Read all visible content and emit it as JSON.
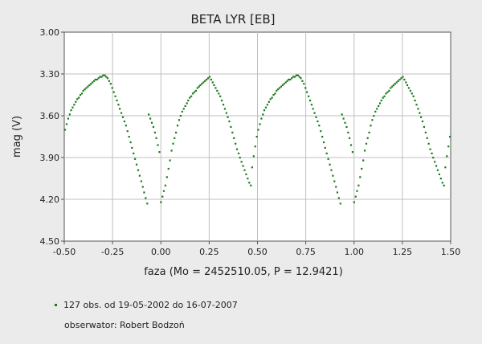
{
  "chart_data": {
    "type": "scatter",
    "title": "BETA LYR [EB]",
    "xlabel": "faza (Mo = 2452510.05, P = 12.9421)",
    "ylabel": "mag (V)",
    "xlim": [
      -0.5,
      1.5
    ],
    "ylim": [
      3.0,
      4.5
    ],
    "y_inverted": true,
    "grid": true,
    "x_ticks": [
      "-0.50",
      "-0.25",
      "0.00",
      "0.25",
      "0.50",
      "0.75",
      "1.00",
      "1.25",
      "1.50"
    ],
    "y_ticks": [
      "3.00",
      "3.30",
      "3.60",
      "3.90",
      "4.20",
      "4.50"
    ],
    "point_color": "#1a7a1a",
    "x": [
      0.0,
      0.008,
      0.015,
      0.023,
      0.031,
      0.039,
      0.047,
      0.055,
      0.063,
      0.07,
      0.078,
      0.086,
      0.094,
      0.102,
      0.11,
      0.118,
      0.126,
      0.134,
      0.141,
      0.149,
      0.157,
      0.165,
      0.173,
      0.181,
      0.189,
      0.197,
      0.204,
      0.212,
      0.22,
      0.228,
      0.236,
      0.244,
      0.252,
      0.26,
      0.268,
      0.275,
      0.283,
      0.291,
      0.299,
      0.307,
      0.315,
      0.323,
      0.331,
      0.339,
      0.346,
      0.354,
      0.362,
      0.37,
      0.378,
      0.386,
      0.394,
      0.402,
      0.409,
      0.417,
      0.425,
      0.433,
      0.441,
      0.449,
      0.457,
      0.465,
      0.472,
      0.48,
      0.488,
      0.496,
      0.504,
      0.512,
      0.52,
      0.528,
      0.535,
      0.543,
      0.551,
      0.559,
      0.567,
      0.575,
      0.583,
      0.591,
      0.598,
      0.606,
      0.614,
      0.622,
      0.63,
      0.638,
      0.646,
      0.654,
      0.661,
      0.669,
      0.677,
      0.685,
      0.693,
      0.701,
      0.709,
      0.717,
      0.724,
      0.732,
      0.74,
      0.748,
      0.756,
      0.764,
      0.772,
      0.78,
      0.787,
      0.795,
      0.803,
      0.811,
      0.819,
      0.827,
      0.835,
      0.843,
      0.85,
      0.858,
      0.866,
      0.874,
      0.882,
      0.89,
      0.898,
      0.906,
      0.913,
      0.921,
      0.929,
      0.937,
      0.945,
      0.953,
      0.961,
      0.969,
      0.976,
      0.984,
      0.992
    ],
    "y": [
      4.22,
      4.18,
      4.14,
      4.1,
      4.04,
      3.98,
      3.92,
      3.85,
      3.8,
      3.76,
      3.72,
      3.67,
      3.63,
      3.6,
      3.57,
      3.55,
      3.53,
      3.51,
      3.49,
      3.47,
      3.46,
      3.44,
      3.43,
      3.42,
      3.4,
      3.39,
      3.38,
      3.37,
      3.36,
      3.35,
      3.34,
      3.33,
      3.32,
      3.34,
      3.36,
      3.38,
      3.4,
      3.42,
      3.44,
      3.46,
      3.49,
      3.52,
      3.55,
      3.58,
      3.61,
      3.64,
      3.68,
      3.72,
      3.76,
      3.8,
      3.84,
      3.87,
      3.9,
      3.93,
      3.96,
      3.99,
      4.02,
      4.05,
      4.08,
      4.1,
      3.97,
      3.89,
      3.82,
      3.75,
      3.7,
      3.66,
      3.62,
      3.59,
      3.56,
      3.54,
      3.52,
      3.5,
      3.48,
      3.47,
      3.45,
      3.44,
      3.42,
      3.41,
      3.4,
      3.39,
      3.38,
      3.37,
      3.36,
      3.35,
      3.34,
      3.34,
      3.33,
      3.32,
      3.32,
      3.31,
      3.31,
      3.32,
      3.33,
      3.35,
      3.37,
      3.4,
      3.43,
      3.46,
      3.49,
      3.52,
      3.55,
      3.58,
      3.61,
      3.64,
      3.67,
      3.71,
      3.75,
      3.79,
      3.83,
      3.87,
      3.91,
      3.95,
      3.99,
      4.03,
      4.07,
      4.11,
      4.15,
      4.19,
      4.23,
      3.59,
      3.62,
      3.65,
      3.68,
      3.72,
      3.76,
      3.81,
      3.86
    ]
  },
  "legend": {
    "obs_text": "127 obs. od 19-05-2002 do 16-07-2007",
    "observer_text": "obserwator: Robert Bodzoń"
  }
}
